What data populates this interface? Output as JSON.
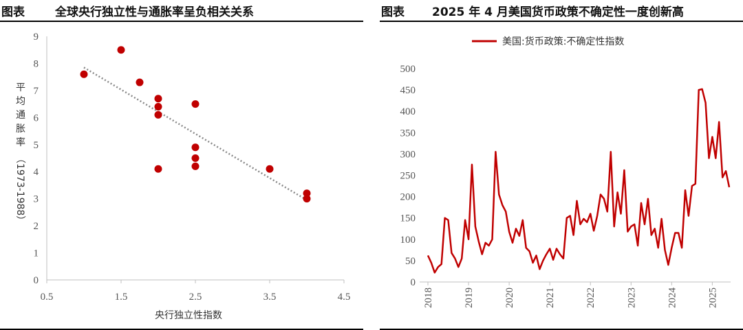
{
  "left": {
    "tag": "图表",
    "title": "全球央行独立性与通胀率呈负相关关系",
    "chart_data": {
      "type": "scatter",
      "xlabel": "央行独立性指数",
      "ylabel": "平均通胀率（1973-1988）",
      "xlim": [
        0.5,
        4.5
      ],
      "ylim": [
        0,
        9
      ],
      "xticks": [
        "0.5",
        "1.5",
        "2.5",
        "3.5",
        "4.5"
      ],
      "yticks": [
        "0",
        "1",
        "2",
        "3",
        "4",
        "5",
        "6",
        "7",
        "8",
        "9"
      ],
      "points": [
        {
          "x": 1.0,
          "y": 7.6
        },
        {
          "x": 1.5,
          "y": 8.5
        },
        {
          "x": 1.75,
          "y": 7.3
        },
        {
          "x": 2.0,
          "y": 6.7
        },
        {
          "x": 2.0,
          "y": 6.4
        },
        {
          "x": 2.0,
          "y": 6.1
        },
        {
          "x": 2.0,
          "y": 4.1
        },
        {
          "x": 2.5,
          "y": 6.5
        },
        {
          "x": 2.5,
          "y": 4.9
        },
        {
          "x": 2.5,
          "y": 4.5
        },
        {
          "x": 2.5,
          "y": 4.2
        },
        {
          "x": 3.5,
          "y": 4.1
        },
        {
          "x": 4.0,
          "y": 3.2
        },
        {
          "x": 4.0,
          "y": 3.0
        }
      ],
      "trendline": {
        "x": [
          1.0,
          4.0
        ],
        "y": [
          7.85,
          2.95
        ],
        "style": "dotted"
      },
      "color": "#c00000",
      "trend_color": "#888888"
    }
  },
  "right": {
    "tag": "图表",
    "title": "2025 年 4 月美国货币政策不确定性一度创新高",
    "chart_data": {
      "type": "line",
      "legend": "美国:货币政策:不确定性指数",
      "legend_position": "top",
      "ylim": [
        0,
        500
      ],
      "yticks": [
        "0",
        "50",
        "100",
        "150",
        "200",
        "250",
        "300",
        "350",
        "400",
        "450",
        "500"
      ],
      "xticks": [
        "2018",
        "2019",
        "2020",
        "2021",
        "2022",
        "2023",
        "2024",
        "2025"
      ],
      "start": "2018-01",
      "frequency": "monthly",
      "color": "#c00000",
      "values": [
        62,
        45,
        22,
        35,
        42,
        150,
        145,
        68,
        55,
        35,
        55,
        145,
        100,
        275,
        130,
        95,
        65,
        92,
        85,
        100,
        305,
        205,
        180,
        165,
        118,
        92,
        125,
        108,
        145,
        80,
        72,
        45,
        62,
        30,
        50,
        65,
        78,
        52,
        78,
        65,
        55,
        150,
        155,
        110,
        190,
        135,
        148,
        140,
        160,
        120,
        155,
        205,
        195,
        165,
        305,
        130,
        210,
        160,
        262,
        118,
        130,
        135,
        85,
        185,
        135,
        195,
        110,
        125,
        80,
        148,
        75,
        40,
        80,
        115,
        115,
        80,
        215,
        155,
        225,
        230,
        450,
        452,
        420,
        290,
        340,
        290,
        375,
        245,
        260,
        222
      ]
    }
  }
}
